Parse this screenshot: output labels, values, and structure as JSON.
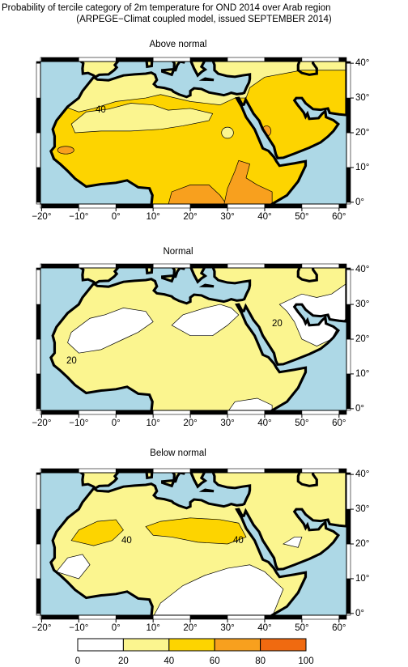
{
  "title": "Probability of tercile category of 2m temperature for OND 2014 over Arab region",
  "subtitle": "(ARPEGE−Climat coupled model, issued SEPTEMBER 2014)",
  "axes": {
    "xlim": [
      -20.3,
      62
    ],
    "ylim": [
      -0.5,
      40.5
    ],
    "lon_ticks": [
      {
        "value": -20,
        "label": "−20°"
      },
      {
        "value": -10,
        "label": "−10°"
      },
      {
        "value": 0,
        "label": "0°"
      },
      {
        "value": 10,
        "label": "10°"
      },
      {
        "value": 20,
        "label": "20°"
      },
      {
        "value": 30,
        "label": "30°"
      },
      {
        "value": 40,
        "label": "40°"
      },
      {
        "value": 50,
        "label": "50°"
      },
      {
        "value": 60,
        "label": "60°"
      }
    ],
    "lat_ticks": [
      {
        "value": 0,
        "label": "0°"
      },
      {
        "value": 10,
        "label": "10°"
      },
      {
        "value": 20,
        "label": "20°"
      },
      {
        "value": 30,
        "label": "30°"
      },
      {
        "value": 40,
        "label": "40°"
      }
    ]
  },
  "panels": [
    {
      "title": "Above normal",
      "contour_labels": [
        "40"
      ]
    },
    {
      "title": "Normal",
      "contour_labels": [
        "20",
        "20"
      ]
    },
    {
      "title": "Below normal",
      "contour_labels": [
        "40",
        "40"
      ]
    }
  ],
  "colorbar": {
    "ticks": [
      0,
      20,
      40,
      60,
      80,
      100
    ],
    "colors": [
      "#ffffff",
      "#fbf58f",
      "#fdd400",
      "#f8a01e",
      "#f06a10"
    ]
  }
}
